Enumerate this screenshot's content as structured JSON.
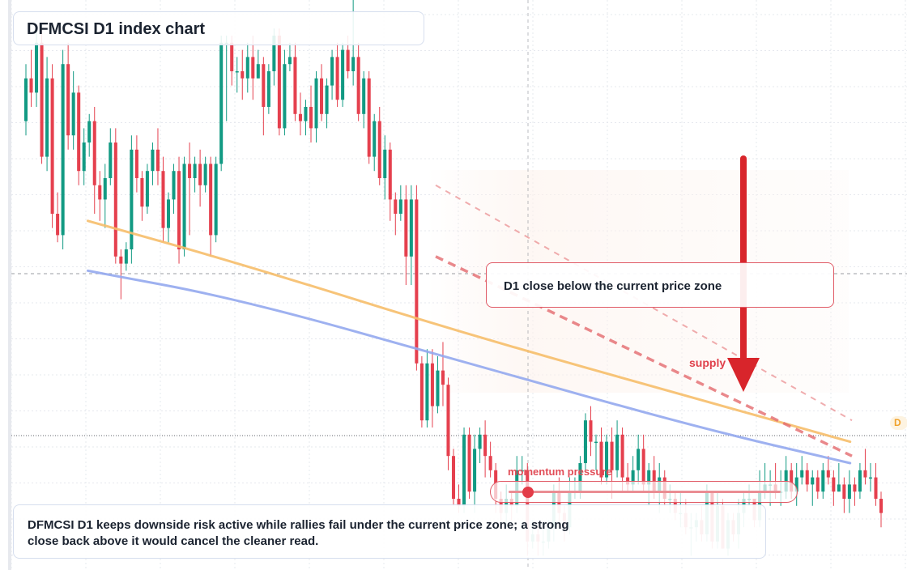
{
  "title": "DFMCSI D1 index chart",
  "callout": "D1 close below the current price zone",
  "supply_label": "supply",
  "momentum": {
    "label": "momentum pressure",
    "level": 0.07
  },
  "summary": "DFMCSI D1 keeps downside risk active while rallies fail under the current price zone; a strong close back above it would cancel the cleaner read.",
  "price_tag": "D",
  "colors": {
    "bull": "#129a83",
    "bear": "#e5404e",
    "ma_fast": "#f6be6a",
    "ma_slow": "#93a8ee",
    "channel": "#e46b6f",
    "arrow": "#d8252b",
    "grid": "#e6e8ee"
  },
  "chart_data": {
    "type": "candlestick",
    "candles": [
      [
        47,
        53,
        45,
        55
      ],
      [
        53,
        51,
        49,
        57
      ],
      [
        51,
        58,
        49,
        60
      ],
      [
        58,
        42,
        41,
        60
      ],
      [
        42,
        53,
        40,
        56
      ],
      [
        53,
        34,
        32,
        55
      ],
      [
        34,
        31,
        30,
        37
      ],
      [
        31,
        55,
        29,
        57
      ],
      [
        55,
        45,
        43,
        58
      ],
      [
        45,
        51,
        43,
        54
      ],
      [
        51,
        40,
        38,
        52
      ],
      [
        40,
        44,
        38,
        46
      ],
      [
        44,
        47,
        42,
        48
      ],
      [
        47,
        38,
        34,
        49
      ],
      [
        38,
        36,
        33,
        40
      ],
      [
        36,
        39,
        32,
        41
      ],
      [
        39,
        44,
        38,
        46
      ],
      [
        44,
        28,
        27,
        46
      ],
      [
        28,
        27,
        22,
        29
      ],
      [
        27,
        29,
        26,
        30
      ],
      [
        29,
        43,
        27,
        45
      ],
      [
        43,
        39,
        37,
        45
      ],
      [
        39,
        35,
        33,
        40
      ],
      [
        35,
        40,
        34,
        41
      ],
      [
        40,
        43,
        38,
        44
      ],
      [
        43,
        40,
        38,
        46
      ],
      [
        40,
        32,
        30,
        42
      ],
      [
        32,
        36,
        30,
        37
      ],
      [
        36,
        40,
        34,
        41
      ],
      [
        40,
        29,
        27,
        42
      ],
      [
        29,
        41,
        28,
        42
      ],
      [
        41,
        39,
        31,
        44
      ],
      [
        39,
        41,
        37,
        42
      ],
      [
        41,
        38,
        35,
        43
      ],
      [
        38,
        41,
        37,
        42
      ],
      [
        41,
        31,
        28,
        42
      ],
      [
        31,
        41,
        30,
        42
      ],
      [
        41,
        58,
        40,
        59
      ],
      [
        58,
        58,
        47,
        59
      ],
      [
        58,
        54,
        52,
        59
      ],
      [
        54,
        54,
        51,
        56
      ],
      [
        54,
        53,
        50,
        57
      ],
      [
        53,
        56,
        51,
        58
      ],
      [
        56,
        53,
        50,
        59
      ],
      [
        53,
        55,
        53,
        57
      ],
      [
        55,
        49,
        45,
        56
      ],
      [
        49,
        54,
        48,
        55
      ],
      [
        54,
        59,
        52,
        60
      ],
      [
        59,
        46,
        45,
        60
      ],
      [
        46,
        55,
        45,
        57
      ],
      [
        55,
        56,
        54,
        58
      ],
      [
        56,
        48,
        47,
        58
      ],
      [
        48,
        47,
        45,
        51
      ],
      [
        47,
        49,
        45,
        50
      ],
      [
        49,
        46,
        44,
        52
      ],
      [
        46,
        53,
        44,
        54
      ],
      [
        53,
        48,
        47,
        55
      ],
      [
        48,
        52,
        46,
        53
      ],
      [
        52,
        56,
        50,
        57
      ],
      [
        56,
        50,
        49,
        58
      ],
      [
        50,
        57,
        49,
        58
      ],
      [
        57,
        54,
        53,
        59
      ],
      [
        54,
        56,
        52,
        64
      ],
      [
        56,
        48,
        47,
        58
      ],
      [
        48,
        53,
        46,
        54
      ],
      [
        53,
        42,
        41,
        54
      ],
      [
        42,
        47,
        40,
        48
      ],
      [
        47,
        39,
        38,
        49
      ],
      [
        39,
        43,
        36,
        45
      ],
      [
        43,
        36,
        33,
        44
      ],
      [
        36,
        34,
        31,
        37
      ],
      [
        34,
        36,
        33,
        38
      ],
      [
        36,
        28,
        24,
        38
      ],
      [
        28,
        36,
        24,
        38
      ],
      [
        36,
        13,
        12,
        38
      ],
      [
        13,
        5,
        4,
        14
      ],
      [
        5,
        13,
        4,
        15
      ],
      [
        13,
        7,
        4,
        15
      ],
      [
        7,
        12,
        6,
        14
      ],
      [
        12,
        10,
        7,
        16
      ],
      [
        10,
        0,
        -2,
        11
      ],
      [
        0,
        -6,
        -7,
        1
      ],
      [
        -6,
        -7,
        -8,
        -4
      ],
      [
        -7,
        3,
        -8,
        4
      ],
      [
        3,
        -5,
        -6,
        4
      ],
      [
        -5,
        1,
        -8,
        3
      ],
      [
        1,
        3,
        -1,
        4
      ],
      [
        3,
        0,
        -3,
        5
      ],
      [
        0,
        -2,
        -3,
        2
      ],
      [
        -2,
        -6,
        -8,
        -1
      ],
      [
        -6,
        -8,
        -9,
        -5
      ],
      [
        -8,
        -6,
        -10,
        -4
      ],
      [
        -6,
        -7,
        -9,
        -5
      ],
      [
        -7,
        -2,
        -8,
        0
      ],
      [
        -2,
        -2,
        -4,
        0
      ],
      [
        -2,
        -12,
        -14,
        -1
      ],
      [
        -12,
        -11,
        -13,
        -9
      ],
      [
        -11,
        -12,
        -14,
        -10
      ],
      [
        -12,
        -12,
        -14,
        -10
      ],
      [
        -12,
        -10,
        -13,
        -9
      ],
      [
        -10,
        -5,
        -12,
        -4
      ],
      [
        -5,
        -8,
        -10,
        -3
      ],
      [
        -8,
        -10,
        -12,
        -7
      ],
      [
        -10,
        -5,
        -11,
        -3
      ],
      [
        -5,
        -5,
        -6,
        -3
      ],
      [
        -5,
        -1,
        -6,
        0
      ],
      [
        -1,
        5,
        -2,
        6
      ],
      [
        5,
        2,
        0,
        7
      ],
      [
        2,
        2,
        -2,
        3
      ],
      [
        2,
        -3,
        -4,
        4
      ],
      [
        -3,
        2,
        -4,
        3
      ],
      [
        2,
        -2,
        -6,
        4
      ],
      [
        -2,
        3,
        -3,
        5
      ],
      [
        3,
        -3,
        -5,
        4
      ],
      [
        -3,
        -4,
        -5,
        -1
      ],
      [
        -4,
        -2,
        -5,
        0
      ],
      [
        -2,
        1,
        -4,
        3
      ],
      [
        1,
        -4,
        -5,
        3
      ],
      [
        -4,
        -2,
        -7,
        -1
      ],
      [
        -2,
        -5,
        -6,
        0
      ],
      [
        -5,
        -3,
        -8,
        -1
      ],
      [
        -3,
        -6,
        -7,
        -2
      ],
      [
        -6,
        -6,
        -8,
        -4
      ],
      [
        -6,
        -8,
        -9,
        -5
      ],
      [
        -8,
        -8,
        -10,
        -5
      ],
      [
        -8,
        -10,
        -11,
        -6
      ],
      [
        -10,
        -10,
        -14,
        -8
      ],
      [
        -10,
        -9,
        -12,
        -8
      ],
      [
        -9,
        -11,
        -12,
        -7
      ],
      [
        -11,
        -5,
        -12,
        -4
      ],
      [
        -5,
        -12,
        -13,
        -5
      ],
      [
        -12,
        -7,
        -13,
        -5
      ],
      [
        -7,
        -13,
        -13,
        -6
      ],
      [
        -13,
        -9,
        -14,
        -8
      ],
      [
        -9,
        -11,
        -12,
        -8
      ],
      [
        -11,
        -8,
        -13,
        -6
      ],
      [
        -8,
        -6,
        -10,
        -5
      ],
      [
        -6,
        -6,
        -7,
        -4
      ],
      [
        -6,
        -9,
        -10,
        -6
      ],
      [
        -9,
        -5,
        -10,
        -2
      ],
      [
        -5,
        -4,
        -6,
        -1
      ],
      [
        -4,
        -4,
        -7,
        -2
      ],
      [
        -4,
        -5,
        -6,
        -1
      ],
      [
        -5,
        -5,
        -7,
        -2
      ],
      [
        -5,
        -2,
        -6,
        0
      ],
      [
        -2,
        -5,
        -6,
        -1
      ],
      [
        -5,
        -3,
        -7,
        -1
      ],
      [
        -3,
        -2,
        -4,
        0
      ],
      [
        -2,
        -4,
        -5,
        -1
      ],
      [
        -4,
        -3,
        -7,
        -2
      ],
      [
        -3,
        -5,
        -6,
        -2
      ],
      [
        -5,
        -2,
        -6,
        -1
      ],
      [
        -2,
        -3,
        -4,
        0
      ],
      [
        -3,
        -5,
        -7,
        -2
      ],
      [
        -5,
        -4,
        -5,
        -1
      ],
      [
        -4,
        -6,
        -8,
        -3
      ],
      [
        -6,
        -4,
        -8,
        -2
      ],
      [
        -4,
        -5,
        -7,
        -3
      ],
      [
        -5,
        -2,
        -6,
        -1
      ],
      [
        -2,
        -3,
        -4,
        1
      ],
      [
        -3,
        -3,
        -5,
        -1
      ],
      [
        -3,
        -6,
        -7,
        -1
      ],
      [
        -6,
        -8,
        -10,
        -5
      ]
    ],
    "ma_fast": {
      "x0": 0.08,
      "x1": 0.96,
      "points": [
        [
          0,
          33
        ],
        [
          0.2,
          27
        ],
        [
          0.5,
          17
        ],
        [
          0.8,
          8
        ],
        [
          1,
          2
        ]
      ]
    },
    "ma_slow": {
      "points": [
        [
          0,
          26
        ],
        [
          0.2,
          22
        ],
        [
          0.5,
          13
        ],
        [
          0.8,
          4
        ],
        [
          1,
          -1
        ]
      ]
    },
    "channel": {
      "upper": [
        [
          0,
          38
        ],
        [
          1,
          5
        ]
      ],
      "lower": [
        [
          0,
          28
        ],
        [
          1,
          0
        ]
      ]
    },
    "xlabel": "",
    "ylabel": "",
    "grid": true
  }
}
